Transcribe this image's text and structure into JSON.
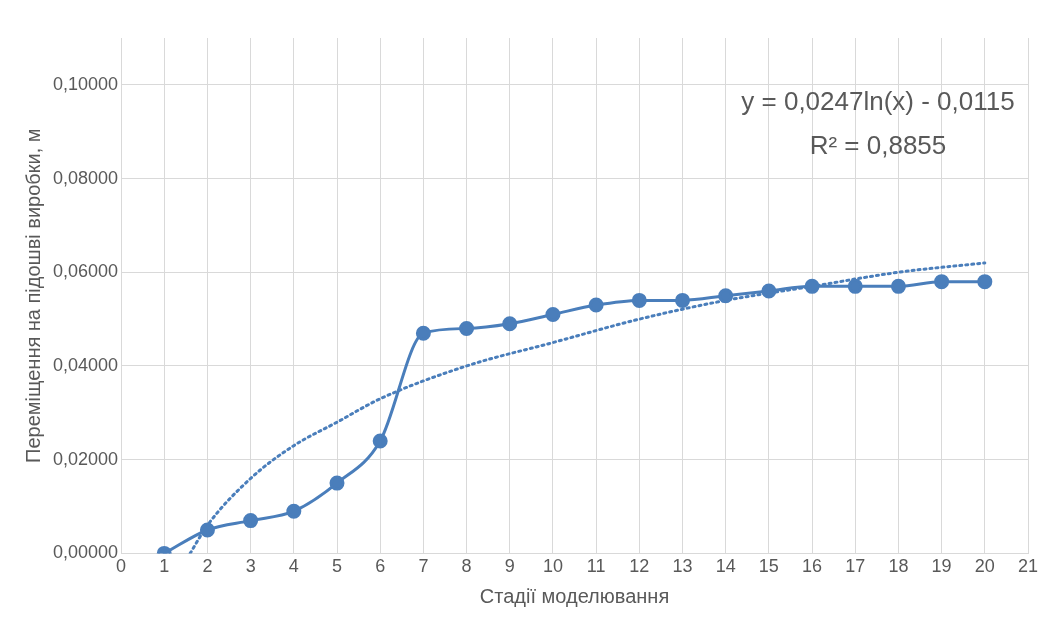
{
  "chart_data": {
    "type": "line",
    "xlabel": "Стадії моделювання",
    "ylabel": "Переміщення на підошві виробки, м",
    "x": [
      1,
      2,
      3,
      4,
      5,
      6,
      7,
      8,
      9,
      10,
      11,
      12,
      13,
      14,
      15,
      16,
      17,
      18,
      19,
      20
    ],
    "series": [
      {
        "color": "#4a7ebb",
        "marker": "circle",
        "line_style": "solid",
        "values": [
          0,
          0.005,
          0.007,
          0.009,
          0.015,
          0.024,
          0.047,
          0.048,
          0.049,
          0.051,
          0.053,
          0.054,
          0.054,
          0.055,
          0.056,
          0.057,
          0.057,
          0.057,
          0.058,
          0.058
        ]
      },
      {
        "color": "#4a7ebb",
        "marker": "none",
        "line_style": "dotted",
        "x": [
          1.6,
          2,
          3,
          4,
          5,
          6,
          8,
          10,
          12,
          14,
          16,
          18,
          20
        ],
        "values": [
          0,
          0.006,
          0.016,
          0.023,
          0.028,
          0.033,
          0.04,
          0.045,
          0.05,
          0.054,
          0.057,
          0.06,
          0.062
        ]
      }
    ],
    "xlim": [
      0,
      21
    ],
    "xticks": [
      0,
      1,
      2,
      3,
      4,
      5,
      6,
      7,
      8,
      9,
      10,
      11,
      12,
      13,
      14,
      15,
      16,
      17,
      18,
      19,
      20,
      21
    ],
    "ylim": [
      0,
      0.11
    ],
    "yticks": [
      {
        "value": 0,
        "label": "0,00000"
      },
      {
        "value": 0.02,
        "label": "0,02000"
      },
      {
        "value": 0.04,
        "label": "0,04000"
      },
      {
        "value": 0.06,
        "label": "0,06000"
      },
      {
        "value": 0.08,
        "label": "0,08000"
      },
      {
        "value": 0.1,
        "label": "0,10000"
      }
    ],
    "grid": true,
    "legend": false,
    "annotations": [
      "y = 0,0247ln(x) - 0,0115",
      "R² = 0,8855"
    ]
  }
}
